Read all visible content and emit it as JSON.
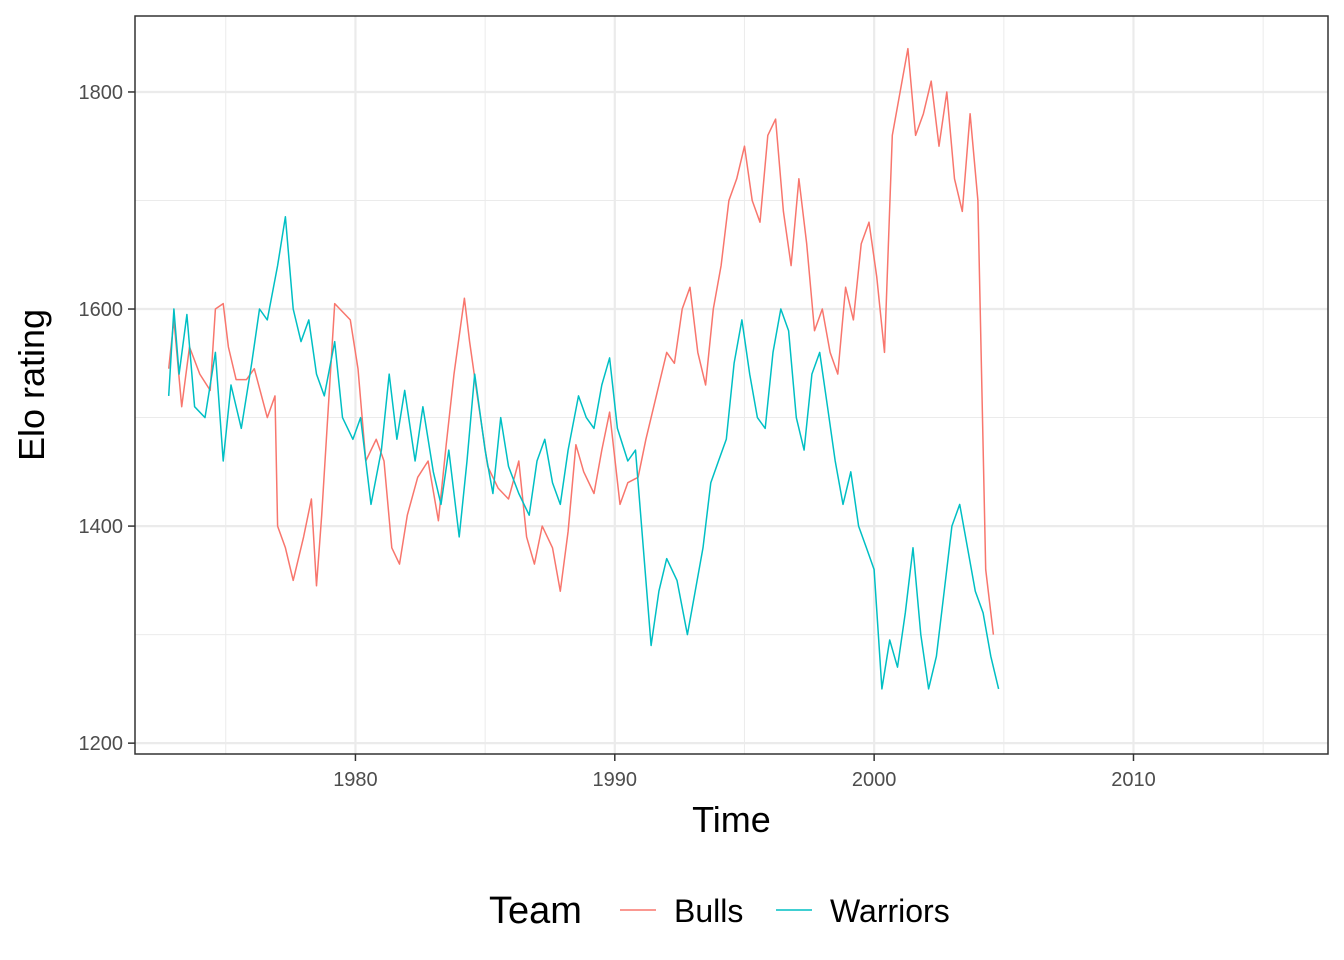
{
  "chart_data": {
    "type": "line",
    "xlabel": "Time",
    "ylabel": "Elo rating",
    "xlim": [
      1971.5,
      2017.5
    ],
    "ylim": [
      1190,
      1870
    ],
    "x_ticks": [
      1980,
      1990,
      2000,
      2010
    ],
    "x_tick_labels": [
      "1980",
      "1990",
      "2000",
      "2010"
    ],
    "y_ticks": [
      1200,
      1400,
      1600,
      1800
    ],
    "y_tick_labels": [
      "1200",
      "1400",
      "1600",
      "1800"
    ],
    "grid": true,
    "legend": {
      "title": "Team",
      "position": "bottom"
    },
    "series": [
      {
        "name": "Bulls",
        "color": "#F8766D",
        "points": [
          [
            1972.8,
            1545
          ],
          [
            1973.0,
            1590
          ],
          [
            1973.3,
            1510
          ],
          [
            1973.6,
            1565
          ],
          [
            1974.0,
            1540
          ],
          [
            1974.4,
            1525
          ],
          [
            1974.6,
            1600
          ],
          [
            1974.9,
            1605
          ],
          [
            1975.1,
            1565
          ],
          [
            1975.4,
            1535
          ],
          [
            1975.8,
            1535
          ],
          [
            1976.1,
            1545
          ],
          [
            1976.6,
            1500
          ],
          [
            1976.9,
            1520
          ],
          [
            1977.0,
            1400
          ],
          [
            1977.3,
            1380
          ],
          [
            1977.6,
            1350
          ],
          [
            1978.0,
            1390
          ],
          [
            1978.3,
            1425
          ],
          [
            1978.5,
            1345
          ],
          [
            1978.7,
            1410
          ],
          [
            1979.2,
            1605
          ],
          [
            1979.8,
            1590
          ],
          [
            1980.1,
            1545
          ],
          [
            1980.4,
            1460
          ],
          [
            1980.8,
            1480
          ],
          [
            1981.1,
            1460
          ],
          [
            1981.4,
            1380
          ],
          [
            1981.7,
            1365
          ],
          [
            1982.0,
            1410
          ],
          [
            1982.4,
            1445
          ],
          [
            1982.8,
            1460
          ],
          [
            1983.2,
            1405
          ],
          [
            1983.5,
            1475
          ],
          [
            1983.8,
            1540
          ],
          [
            1984.2,
            1610
          ],
          [
            1984.4,
            1570
          ],
          [
            1984.7,
            1520
          ],
          [
            1985.1,
            1455
          ],
          [
            1985.5,
            1435
          ],
          [
            1985.9,
            1425
          ],
          [
            1986.3,
            1460
          ],
          [
            1986.6,
            1390
          ],
          [
            1986.9,
            1365
          ],
          [
            1987.2,
            1400
          ],
          [
            1987.6,
            1380
          ],
          [
            1987.9,
            1340
          ],
          [
            1988.2,
            1395
          ],
          [
            1988.5,
            1475
          ],
          [
            1988.8,
            1450
          ],
          [
            1989.2,
            1430
          ],
          [
            1989.5,
            1470
          ],
          [
            1989.8,
            1505
          ],
          [
            1990.2,
            1420
          ],
          [
            1990.5,
            1440
          ],
          [
            1990.9,
            1445
          ],
          [
            1991.2,
            1480
          ],
          [
            1991.6,
            1520
          ],
          [
            1992.0,
            1560
          ],
          [
            1992.3,
            1550
          ],
          [
            1992.6,
            1600
          ],
          [
            1992.9,
            1620
          ],
          [
            1993.2,
            1560
          ],
          [
            1993.5,
            1530
          ],
          [
            1993.8,
            1600
          ],
          [
            1994.1,
            1640
          ],
          [
            1994.4,
            1700
          ],
          [
            1994.7,
            1720
          ],
          [
            1995.0,
            1750
          ],
          [
            1995.3,
            1700
          ],
          [
            1995.6,
            1680
          ],
          [
            1995.9,
            1760
          ],
          [
            1996.2,
            1775
          ],
          [
            1996.5,
            1690
          ],
          [
            1996.8,
            1640
          ],
          [
            1997.1,
            1720
          ],
          [
            1997.4,
            1660
          ],
          [
            1997.7,
            1580
          ],
          [
            1998.0,
            1600
          ],
          [
            1998.3,
            1560
          ],
          [
            1998.6,
            1540
          ],
          [
            1998.9,
            1620
          ],
          [
            1999.2,
            1590
          ],
          [
            1999.5,
            1660
          ],
          [
            1999.8,
            1680
          ],
          [
            2000.1,
            1630
          ],
          [
            2000.4,
            1560
          ],
          [
            2000.7,
            1760
          ],
          [
            2001.0,
            1800
          ],
          [
            2001.3,
            1840
          ],
          [
            2001.6,
            1760
          ],
          [
            2001.9,
            1780
          ],
          [
            2002.2,
            1810
          ],
          [
            2002.5,
            1750
          ],
          [
            2002.8,
            1800
          ],
          [
            2003.1,
            1720
          ],
          [
            2003.4,
            1690
          ],
          [
            2003.7,
            1780
          ],
          [
            2004.0,
            1700
          ],
          [
            2004.3,
            1360
          ],
          [
            2004.6,
            1300
          ]
        ]
      },
      {
        "name": "Warriors",
        "color": "#00BFC4",
        "points": [
          [
            1972.8,
            1520
          ],
          [
            1973.0,
            1600
          ],
          [
            1973.2,
            1540
          ],
          [
            1973.5,
            1595
          ],
          [
            1973.8,
            1510
          ],
          [
            1974.2,
            1500
          ],
          [
            1974.6,
            1560
          ],
          [
            1974.9,
            1460
          ],
          [
            1975.2,
            1530
          ],
          [
            1975.6,
            1490
          ],
          [
            1976.0,
            1550
          ],
          [
            1976.3,
            1600
          ],
          [
            1976.6,
            1590
          ],
          [
            1977.0,
            1640
          ],
          [
            1977.3,
            1685
          ],
          [
            1977.6,
            1600
          ],
          [
            1977.9,
            1570
          ],
          [
            1978.2,
            1590
          ],
          [
            1978.5,
            1540
          ],
          [
            1978.8,
            1520
          ],
          [
            1979.2,
            1570
          ],
          [
            1979.5,
            1500
          ],
          [
            1979.9,
            1480
          ],
          [
            1980.2,
            1500
          ],
          [
            1980.6,
            1420
          ],
          [
            1981.0,
            1470
          ],
          [
            1981.3,
            1540
          ],
          [
            1981.6,
            1480
          ],
          [
            1981.9,
            1525
          ],
          [
            1982.3,
            1460
          ],
          [
            1982.6,
            1510
          ],
          [
            1983.0,
            1450
          ],
          [
            1983.3,
            1420
          ],
          [
            1983.6,
            1470
          ],
          [
            1984.0,
            1390
          ],
          [
            1984.3,
            1460
          ],
          [
            1984.6,
            1540
          ],
          [
            1985.0,
            1470
          ],
          [
            1985.3,
            1430
          ],
          [
            1985.6,
            1500
          ],
          [
            1985.9,
            1455
          ],
          [
            1986.3,
            1430
          ],
          [
            1986.7,
            1410
          ],
          [
            1987.0,
            1460
          ],
          [
            1987.3,
            1480
          ],
          [
            1987.6,
            1440
          ],
          [
            1987.9,
            1420
          ],
          [
            1988.2,
            1470
          ],
          [
            1988.6,
            1520
          ],
          [
            1988.9,
            1500
          ],
          [
            1989.2,
            1490
          ],
          [
            1989.5,
            1530
          ],
          [
            1989.8,
            1555
          ],
          [
            1990.1,
            1490
          ],
          [
            1990.5,
            1460
          ],
          [
            1990.8,
            1470
          ],
          [
            1991.1,
            1380
          ],
          [
            1991.4,
            1290
          ],
          [
            1991.7,
            1340
          ],
          [
            1992.0,
            1370
          ],
          [
            1992.4,
            1350
          ],
          [
            1992.8,
            1300
          ],
          [
            1993.1,
            1340
          ],
          [
            1993.4,
            1380
          ],
          [
            1993.7,
            1440
          ],
          [
            1994.0,
            1460
          ],
          [
            1994.3,
            1480
          ],
          [
            1994.6,
            1550
          ],
          [
            1994.9,
            1590
          ],
          [
            1995.2,
            1540
          ],
          [
            1995.5,
            1500
          ],
          [
            1995.8,
            1490
          ],
          [
            1996.1,
            1560
          ],
          [
            1996.4,
            1600
          ],
          [
            1996.7,
            1580
          ],
          [
            1997.0,
            1500
          ],
          [
            1997.3,
            1470
          ],
          [
            1997.6,
            1540
          ],
          [
            1997.9,
            1560
          ],
          [
            1998.2,
            1510
          ],
          [
            1998.5,
            1460
          ],
          [
            1998.8,
            1420
          ],
          [
            1999.1,
            1450
          ],
          [
            1999.4,
            1400
          ],
          [
            1999.7,
            1380
          ],
          [
            2000.0,
            1360
          ],
          [
            2000.3,
            1250
          ],
          [
            2000.6,
            1295
          ],
          [
            2000.9,
            1270
          ],
          [
            2001.2,
            1320
          ],
          [
            2001.5,
            1380
          ],
          [
            2001.8,
            1300
          ],
          [
            2002.1,
            1250
          ],
          [
            2002.4,
            1280
          ],
          [
            2002.7,
            1340
          ],
          [
            2003.0,
            1400
          ],
          [
            2003.3,
            1420
          ],
          [
            2003.6,
            1380
          ],
          [
            2003.9,
            1340
          ],
          [
            2004.2,
            1320
          ],
          [
            2004.5,
            1280
          ],
          [
            2004.8,
            1250
          ]
        ]
      }
    ]
  }
}
